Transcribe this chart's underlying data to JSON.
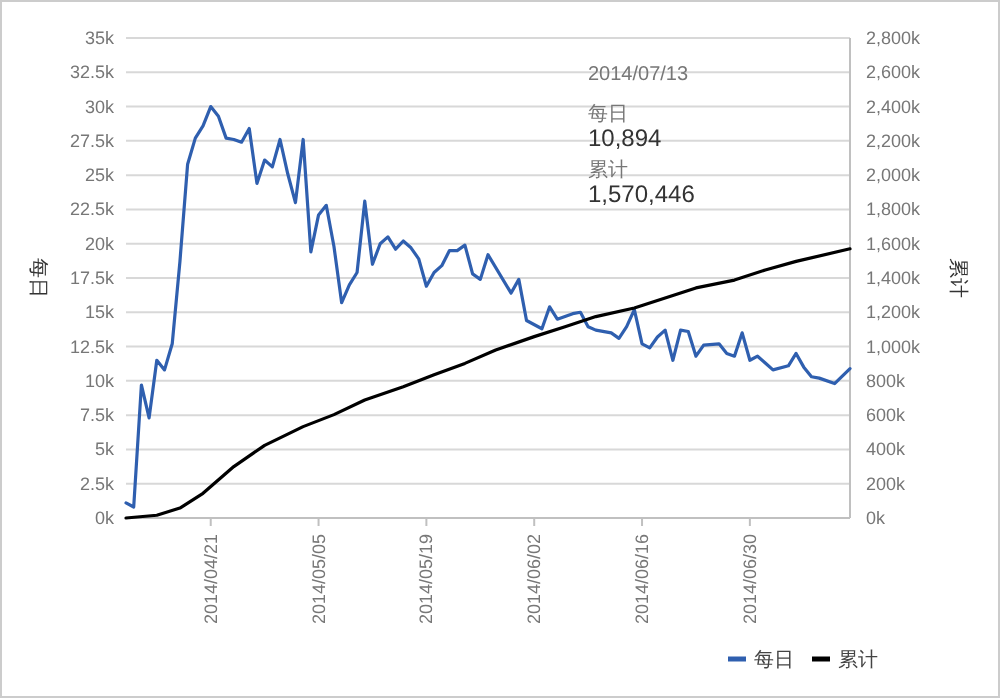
{
  "chart_data": {
    "type": "line",
    "ylabel": "每日",
    "y2label": "累计",
    "xlim": [
      "2014-04-10",
      "2014-07-13"
    ],
    "xticks": [
      {
        "value": "2014-04-21",
        "label": "2014/04/21"
      },
      {
        "value": "2014-05-05",
        "label": "2014/05/05"
      },
      {
        "value": "2014-05-19",
        "label": "2014/05/19"
      },
      {
        "value": "2014-06-02",
        "label": "2014/06/02"
      },
      {
        "value": "2014-06-16",
        "label": "2014/06/16"
      },
      {
        "value": "2014-06-30",
        "label": "2014/06/30"
      }
    ],
    "ylim": [
      0,
      35000
    ],
    "yticks": [
      {
        "value": 0,
        "label": "0k"
      },
      {
        "value": 2500,
        "label": "2.5k"
      },
      {
        "value": 5000,
        "label": "5k"
      },
      {
        "value": 7500,
        "label": "7.5k"
      },
      {
        "value": 10000,
        "label": "10k"
      },
      {
        "value": 12500,
        "label": "12.5k"
      },
      {
        "value": 15000,
        "label": "15k"
      },
      {
        "value": 17500,
        "label": "17.5k"
      },
      {
        "value": 20000,
        "label": "20k"
      },
      {
        "value": 22500,
        "label": "22.5k"
      },
      {
        "value": 25000,
        "label": "25k"
      },
      {
        "value": 27500,
        "label": "27.5k"
      },
      {
        "value": 30000,
        "label": "30k"
      },
      {
        "value": 32500,
        "label": "32.5k"
      },
      {
        "value": 35000,
        "label": "35k"
      }
    ],
    "y2lim": [
      0,
      2800000
    ],
    "y2ticks": [
      {
        "value": 0,
        "label": "0k"
      },
      {
        "value": 200000,
        "label": "200k"
      },
      {
        "value": 400000,
        "label": "400k"
      },
      {
        "value": 600000,
        "label": "600k"
      },
      {
        "value": 800000,
        "label": "800k"
      },
      {
        "value": 1000000,
        "label": "1,000k"
      },
      {
        "value": 1200000,
        "label": "1,200k"
      },
      {
        "value": 1400000,
        "label": "1,400k"
      },
      {
        "value": 1600000,
        "label": "1,600k"
      },
      {
        "value": 1800000,
        "label": "1,800k"
      },
      {
        "value": 2000000,
        "label": "2,000k"
      },
      {
        "value": 2200000,
        "label": "2,200k"
      },
      {
        "value": 2400000,
        "label": "2,400k"
      },
      {
        "value": 2600000,
        "label": "2,600k"
      },
      {
        "value": 2800000,
        "label": "2,800k"
      }
    ],
    "grid": "y",
    "legend": "bottom right",
    "series": [
      {
        "name": "每日",
        "color": "#2f5faf",
        "x": [
          "2014-04-10",
          "2014-04-11",
          "2014-04-12",
          "2014-04-13",
          "2014-04-14",
          "2014-04-15",
          "2014-04-16",
          "2014-04-17",
          "2014-04-18",
          "2014-04-19",
          "2014-04-20",
          "2014-04-21",
          "2014-04-22",
          "2014-04-23",
          "2014-04-24",
          "2014-04-25",
          "2014-04-26",
          "2014-04-27",
          "2014-04-28",
          "2014-04-29",
          "2014-04-30",
          "2014-05-01",
          "2014-05-02",
          "2014-05-03",
          "2014-05-04",
          "2014-05-05",
          "2014-05-06",
          "2014-05-07",
          "2014-05-08",
          "2014-05-09",
          "2014-05-10",
          "2014-05-11",
          "2014-05-12",
          "2014-05-13",
          "2014-05-14",
          "2014-05-15",
          "2014-05-16",
          "2014-05-17",
          "2014-05-18",
          "2014-05-19",
          "2014-05-20",
          "2014-05-21",
          "2014-05-22",
          "2014-05-23",
          "2014-05-24",
          "2014-05-25",
          "2014-05-26",
          "2014-05-27",
          "2014-05-30",
          "2014-05-31",
          "2014-06-01",
          "2014-06-03",
          "2014-06-04",
          "2014-06-05",
          "2014-06-07",
          "2014-06-08",
          "2014-06-09",
          "2014-06-10",
          "2014-06-12",
          "2014-06-13",
          "2014-06-14",
          "2014-06-15",
          "2014-06-16",
          "2014-06-17",
          "2014-06-18",
          "2014-06-19",
          "2014-06-20",
          "2014-06-21",
          "2014-06-22",
          "2014-06-23",
          "2014-06-24",
          "2014-06-26",
          "2014-06-27",
          "2014-06-28",
          "2014-06-29",
          "2014-06-30",
          "2014-07-01",
          "2014-07-02",
          "2014-07-03",
          "2014-07-05",
          "2014-07-06",
          "2014-07-07",
          "2014-07-08",
          "2014-07-09",
          "2014-07-11",
          "2014-07-13"
        ],
        "values": [
          1100,
          800,
          9700,
          7300,
          11500,
          10800,
          12700,
          18700,
          25800,
          27700,
          28600,
          30000,
          29300,
          27700,
          27600,
          27400,
          28400,
          24400,
          26100,
          25600,
          27600,
          25100,
          23000,
          27600,
          19400,
          22100,
          22800,
          19800,
          15700,
          17000,
          17900,
          23100,
          18500,
          20000,
          20500,
          19600,
          20200,
          19700,
          18900,
          16900,
          17900,
          18400,
          19500,
          19500,
          19900,
          17800,
          17400,
          19200,
          16400,
          17400,
          14400,
          13800,
          15400,
          14500,
          14900,
          15000,
          13950,
          13700,
          13500,
          13100,
          13950,
          15200,
          12700,
          12400,
          13200,
          13700,
          11500,
          13700,
          13600,
          11800,
          12600,
          12700,
          12000,
          11800,
          13500,
          11500,
          11800,
          11300,
          10800,
          11100,
          12000,
          11000,
          10300,
          10200,
          9800,
          10894
        ]
      },
      {
        "name": "累计",
        "color": "#000000",
        "axis": "y2",
        "x": [
          "2014-04-10",
          "2014-04-14",
          "2014-04-17",
          "2014-04-20",
          "2014-04-24",
          "2014-04-28",
          "2014-05-03",
          "2014-05-07",
          "2014-05-11",
          "2014-05-16",
          "2014-05-20",
          "2014-05-24",
          "2014-05-28",
          "2014-06-02",
          "2014-06-06",
          "2014-06-10",
          "2014-06-15",
          "2014-06-19",
          "2014-06-23",
          "2014-06-28",
          "2014-07-02",
          "2014-07-06",
          "2014-07-13"
        ],
        "values": [
          0,
          16000,
          58000,
          144000,
          300000,
          424000,
          533000,
          603000,
          688000,
          766000,
          836000,
          902000,
          980000,
          1058000,
          1116000,
          1175000,
          1225000,
          1283000,
          1342000,
          1388000,
          1447000,
          1497000,
          1570446
        ]
      }
    ],
    "annotations": [
      "2014/07/13",
      "每日",
      "10,894",
      "累计",
      "1,570,446"
    ]
  }
}
